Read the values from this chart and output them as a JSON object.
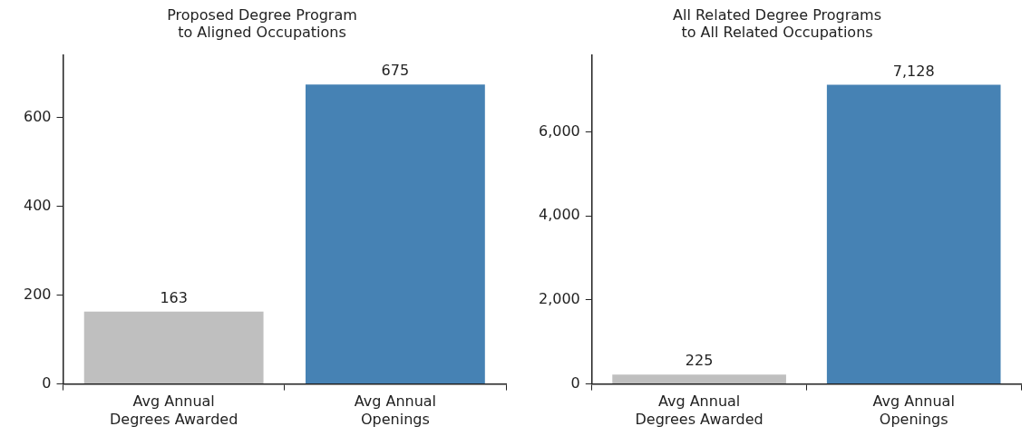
{
  "chart_data": [
    {
      "type": "bar",
      "title": "Proposed Degree Program\nto Aligned Occupations",
      "categories": [
        "Avg Annual\nDegrees Awarded",
        "Avg Annual\nOpenings"
      ],
      "values": [
        163,
        675
      ],
      "value_labels": [
        "163",
        "675"
      ],
      "colors": [
        "#bfbfbf",
        "#4682b4"
      ],
      "ylim": [
        0,
        742
      ],
      "yticks": [
        0,
        200,
        400,
        600
      ],
      "grid": false,
      "legend": false
    },
    {
      "type": "bar",
      "title": "All Related Degree Programs\nto All Related Occupations",
      "categories": [
        "Avg Annual\nDegrees Awarded",
        "Avg Annual\nOpenings"
      ],
      "values": [
        225,
        7128
      ],
      "value_labels": [
        "225",
        "7,128"
      ],
      "colors": [
        "#bfbfbf",
        "#4682b4"
      ],
      "ylim": [
        0,
        7841
      ],
      "yticks": [
        {
          "value": 0,
          "label": "0"
        },
        {
          "value": 2000,
          "label": "2,000"
        },
        {
          "value": 4000,
          "label": "4,000"
        },
        {
          "value": 6000,
          "label": "6,000"
        }
      ],
      "grid": false,
      "legend": false
    }
  ]
}
